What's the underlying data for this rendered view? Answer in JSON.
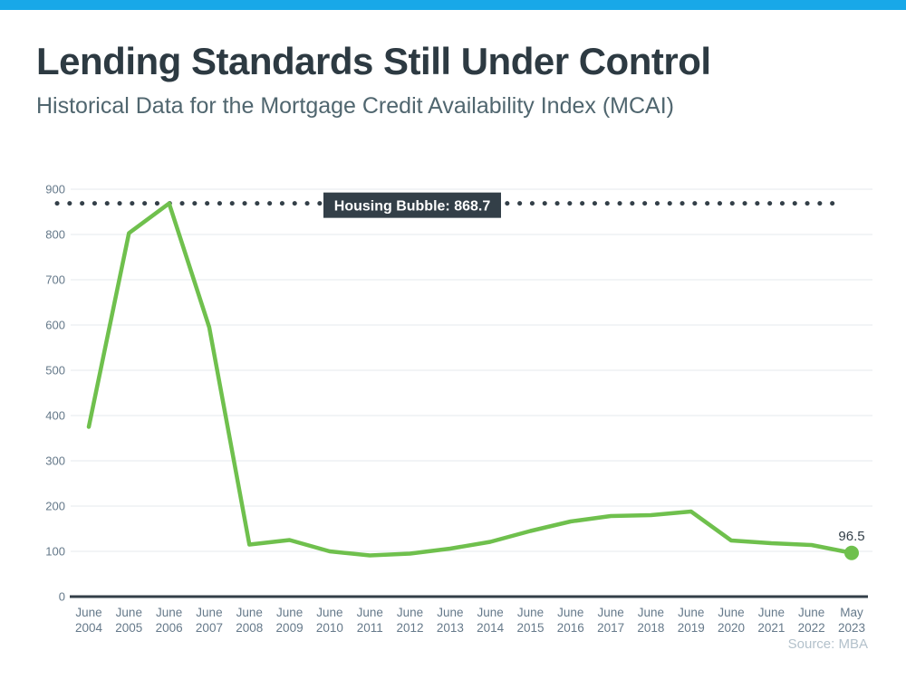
{
  "top_bar": {
    "color": "#18a8e8"
  },
  "header": {
    "title": "Lending Standards Still Under Control",
    "subtitle": "Historical Data for the Mortgage Credit Availability Index (MCAI)"
  },
  "chart_data": {
    "type": "line",
    "title": "Lending Standards Still Under Control",
    "subtitle": "Historical Data for the Mortgage Credit Availability Index (MCAI)",
    "categories": [
      "June 2004",
      "June 2005",
      "June 2006",
      "June 2007",
      "June 2008",
      "June 2009",
      "June 2010",
      "June 2011",
      "June 2012",
      "June 2013",
      "June 2014",
      "June 2015",
      "June 2016",
      "June 2017",
      "June 2018",
      "June 2019",
      "June 2020",
      "June 2021",
      "June 2022",
      "May 2023"
    ],
    "series": [
      {
        "name": "MCAI",
        "values": [
          375,
          803,
          868.7,
          595,
          115,
          125,
          100,
          91,
          95,
          106,
          121,
          145,
          166,
          178,
          180,
          188,
          124,
          118,
          114,
          96.5
        ]
      }
    ],
    "ylim": [
      0,
      900
    ],
    "yticks": [
      0,
      100,
      200,
      300,
      400,
      500,
      600,
      700,
      800,
      900
    ],
    "grid": true,
    "legend_position": "none",
    "annotation_line": {
      "value": 868.7,
      "label": "Housing Bubble: 868.7"
    },
    "end_point_label": "96.5",
    "colors": {
      "line": "#6fc04d",
      "annotation": "#333f48",
      "annotation_label_bg": "#333f48",
      "annotation_label_text": "#ffffff",
      "grid": "#e6e9ec",
      "axis": "#333f48",
      "tick_text": "#65798a",
      "end_label_text": "#333f48"
    }
  },
  "footer": {
    "source": "Source: MBA"
  }
}
